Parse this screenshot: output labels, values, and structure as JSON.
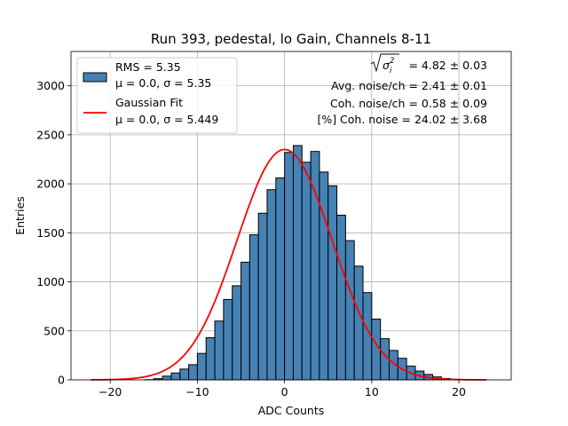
{
  "chart_data": {
    "type": "bar",
    "title": "Run 393, pedestal, lo Gain, Channels 8-11",
    "xlabel": "ADC Counts",
    "ylabel": "Entries",
    "xlim": [
      -24.5,
      26
    ],
    "ylim": [
      0,
      3350
    ],
    "grid": true,
    "legend_position": "top-left",
    "xticks": [
      -20,
      -10,
      0,
      10,
      20
    ],
    "xtick_labels": [
      "−20",
      "−10",
      "0",
      "10",
      "20"
    ],
    "yticks": [
      0,
      500,
      1000,
      1500,
      2000,
      2500,
      3000
    ],
    "ytick_labels": [
      "0",
      "500",
      "1000",
      "1500",
      "2000",
      "2500",
      "3000"
    ],
    "histogram": {
      "name": "RMS = 5.35",
      "label_line2": "μ = 0.0, σ = 5.35",
      "color": "#4682b4",
      "bin_edges": [
        -22,
        -21,
        -20,
        -19,
        -18,
        -17,
        -16,
        -15,
        -14,
        -13,
        -12,
        -11,
        -10,
        -9,
        -8,
        -7,
        -6,
        -5,
        -4,
        -3,
        -2,
        -1,
        0,
        1,
        2,
        3,
        4,
        5,
        6,
        7,
        8,
        9,
        10,
        11,
        12,
        13,
        14,
        15,
        16,
        17,
        18,
        19,
        20,
        21,
        22,
        23
      ],
      "counts": [
        0,
        0,
        0,
        0,
        0,
        0,
        2,
        12,
        38,
        70,
        110,
        155,
        270,
        430,
        600,
        820,
        960,
        1200,
        1480,
        1700,
        1940,
        2060,
        2320,
        2390,
        2220,
        2330,
        2120,
        1980,
        1680,
        1420,
        1160,
        890,
        620,
        420,
        300,
        220,
        140,
        90,
        55,
        30,
        14,
        6,
        2,
        0,
        0
      ]
    },
    "fit": {
      "name": "Gaussian Fit",
      "label_line2": "μ = 0.0, σ = 5.449",
      "color": "#ff0000",
      "mu": 0.0,
      "sigma": 5.449,
      "amplitude": 2350,
      "x_range": [
        -22.2,
        23.2
      ]
    },
    "annotations": {
      "sigma_total_value": "= 4.82 ± 0.03",
      "avg_noise": "Avg. noise/ch = 2.41 ± 0.01",
      "coh_noise": "Coh. noise/ch = 0.58 ± 0.09",
      "pct_coh_noise": "[%] Coh. noise = 24.02 ± 3.68"
    }
  }
}
